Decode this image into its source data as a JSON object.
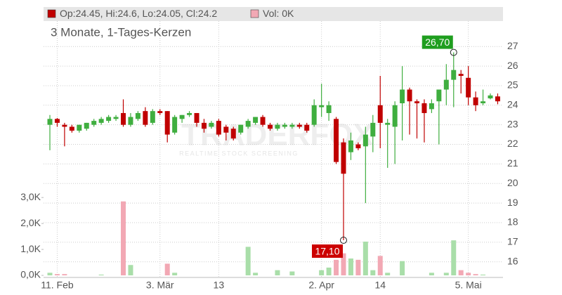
{
  "chart_data": {
    "type": "candlestick",
    "title": "3 Monate, 1-Tages-Kerzen",
    "legend": [
      "Op:24.45, Hi:24.6, Lo:24.05, Cl:24.2",
      "Vol: 0K"
    ],
    "watermark": [
      "TRADERFOX",
      "REALTIME STOCK SCREENING"
    ],
    "categories": [
      null,
      "11. Feb",
      null,
      null,
      null,
      null,
      null,
      null,
      null,
      null,
      null,
      null,
      null,
      null,
      null,
      "3. Mär",
      null,
      null,
      null,
      null,
      null,
      null,
      null,
      "13",
      null,
      null,
      null,
      null,
      null,
      null,
      null,
      null,
      null,
      null,
      null,
      null,
      null,
      "2. Apr",
      null,
      null,
      null,
      null,
      null,
      null,
      null,
      "14",
      null,
      null,
      null,
      null,
      null,
      null,
      null,
      null,
      null,
      null,
      null,
      "5. Mai",
      null,
      null,
      null,
      null
    ],
    "open": [
      23.0,
      23.3,
      23.0,
      22.9,
      22.7,
      22.8,
      23.0,
      23.1,
      23.2,
      23.3,
      23.6,
      23.0,
      23.3,
      23.7,
      23.1,
      23.7,
      23.7,
      22.6,
      23.3,
      23.5,
      23.6,
      23.1,
      22.9,
      23.2,
      22.9,
      22.8,
      22.6,
      22.9,
      23.1,
      23.4,
      23.0,
      22.8,
      22.9,
      22.9,
      23.0,
      23.0,
      23.0,
      23.9,
      23.6,
      23.3,
      22.1,
      21.6,
      22.0,
      21.9,
      22.4,
      24.0,
      23.0,
      22.9,
      24.1,
      24.8,
      24.2,
      24.1,
      23.8,
      24.2,
      24.8,
      25.3,
      25.6,
      25.4,
      24.4,
      24.1,
      24.35,
      24.45
    ],
    "high": [
      23.5,
      23.35,
      23.1,
      23.0,
      23.0,
      23.1,
      23.3,
      23.4,
      23.5,
      23.5,
      24.3,
      23.6,
      23.7,
      23.9,
      23.8,
      23.8,
      23.7,
      23.5,
      23.5,
      23.7,
      23.6,
      23.3,
      23.2,
      23.3,
      23.0,
      22.9,
      23.0,
      23.3,
      23.4,
      23.5,
      23.1,
      23.1,
      23.1,
      23.1,
      23.1,
      23.1,
      24.3,
      25.1,
      24.2,
      23.4,
      22.3,
      22.6,
      22.1,
      22.9,
      23.5,
      25.5,
      23.3,
      24.2,
      26.0,
      24.9,
      24.3,
      24.3,
      24.3,
      24.8,
      26.1,
      26.7,
      25.8,
      26.0,
      24.7,
      24.8,
      24.6,
      24.6
    ],
    "low": [
      21.7,
      22.9,
      21.9,
      22.6,
      22.6,
      22.7,
      22.9,
      23.0,
      23.1,
      23.2,
      22.9,
      22.9,
      23.2,
      22.9,
      23.0,
      23.5,
      22.1,
      22.5,
      23.1,
      23.4,
      22.9,
      22.6,
      22.8,
      22.4,
      22.2,
      22.2,
      22.5,
      22.8,
      23.0,
      22.9,
      22.7,
      22.7,
      22.8,
      22.8,
      22.8,
      22.6,
      22.9,
      23.4,
      23.2,
      21.0,
      17.1,
      21.2,
      21.7,
      19.0,
      21.6,
      21.8,
      20.8,
      21.0,
      22.2,
      22.5,
      22.3,
      22.1,
      23.6,
      22.0,
      24.0,
      23.9,
      24.6,
      24.0,
      23.7,
      24.0,
      24.3,
      24.05
    ],
    "close": [
      23.3,
      23.1,
      22.9,
      22.7,
      23.0,
      23.1,
      23.2,
      23.3,
      23.4,
      23.4,
      23.0,
      23.4,
      23.6,
      23.0,
      23.7,
      23.6,
      22.5,
      23.4,
      23.5,
      23.6,
      23.1,
      22.8,
      23.1,
      22.5,
      22.6,
      22.3,
      23.0,
      23.2,
      23.4,
      23.0,
      22.8,
      23.0,
      23.0,
      23.0,
      22.9,
      22.7,
      24.0,
      24.0,
      24.0,
      21.1,
      20.5,
      22.2,
      21.8,
      22.5,
      23.1,
      23.1,
      23.1,
      24.0,
      24.8,
      24.2,
      24.1,
      23.6,
      24.1,
      24.8,
      25.3,
      25.8,
      25.5,
      24.4,
      24.0,
      24.2,
      24.5,
      24.2
    ],
    "volume": [
      0.1,
      0.05,
      0.05,
      0,
      0,
      0,
      0,
      0.03,
      0,
      0,
      2.85,
      0.4,
      0,
      0,
      0,
      0,
      0.45,
      0.1,
      0,
      0,
      0,
      0,
      0,
      0,
      0,
      0,
      0,
      1.1,
      0.1,
      0,
      0,
      0.2,
      0,
      0.15,
      0,
      0,
      0,
      0.2,
      0.3,
      0.6,
      0.85,
      0.65,
      0.6,
      1.3,
      0.2,
      0.75,
      0.1,
      0,
      0.55,
      0,
      0,
      0,
      0.1,
      0,
      0.1,
      1.35,
      0.2,
      0.1,
      0.05,
      0.03,
      0,
      0
    ],
    "up_color": "#3fae3f",
    "down_color": "#c00000",
    "volume_up_color": "#a9dea9",
    "volume_down_color": "#f2a8b4",
    "ylim": [
      15.2,
      28.3
    ],
    "yticks": [
      16,
      17,
      18,
      19,
      20,
      21,
      22,
      23,
      24,
      25,
      26,
      27
    ],
    "y2lim": [
      -0.08,
      9.8
    ],
    "y2ticks": [
      {
        "value": 0,
        "label": "0,0K"
      },
      {
        "value": 1,
        "label": "1,0K"
      },
      {
        "value": 2,
        "label": "2,0K"
      },
      {
        "value": 3,
        "label": "3,0K"
      }
    ],
    "annotations": [
      {
        "label": "26,70",
        "value": 26.7,
        "series": "high",
        "color": "#1f9e1f"
      },
      {
        "label": "17,10",
        "value": 17.1,
        "series": "low",
        "color": "#cc0000"
      }
    ],
    "grid": true
  }
}
